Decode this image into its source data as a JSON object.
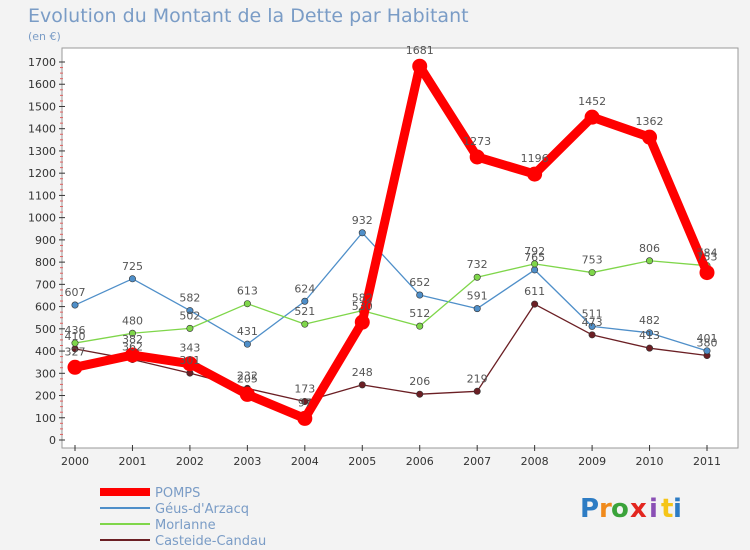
{
  "chart_data": {
    "type": "line",
    "title": "Evolution du Montant de la Dette par Habitant",
    "subtitle": "(en €)",
    "x": [
      "2000",
      "2001",
      "2002",
      "2003",
      "2004",
      "2005",
      "2006",
      "2007",
      "2008",
      "2009",
      "2010",
      "2011"
    ],
    "ylim": [
      0,
      1700
    ],
    "yticks": [
      0,
      100,
      200,
      300,
      400,
      500,
      600,
      700,
      800,
      900,
      1000,
      1100,
      1200,
      1300,
      1400,
      1500,
      1600,
      1700
    ],
    "grid": false,
    "legend_position": "bottom-left",
    "series": [
      {
        "name": "POMPS",
        "color": "#ff0000",
        "values": [
          327,
          382,
          343,
          205,
          97,
          530,
          1681,
          1273,
          1196,
          1452,
          1362,
          753
        ]
      },
      {
        "name": "Géus-d'Arzacq",
        "color": "#4f8fc9",
        "values": [
          607,
          725,
          582,
          431,
          624,
          932,
          652,
          591,
          765,
          511,
          482,
          401
        ]
      },
      {
        "name": "Morlanne",
        "color": "#7fd64a",
        "values": [
          436,
          480,
          502,
          613,
          521,
          582,
          512,
          732,
          792,
          753,
          806,
          784
        ]
      },
      {
        "name": "Casteide-Candau",
        "color": "#6b1f24",
        "values": [
          410,
          362,
          301,
          232,
          173,
          248,
          206,
          219,
          611,
          473,
          413,
          380
        ]
      }
    ]
  },
  "logo": {
    "letters": [
      "P",
      "r",
      "o",
      "x",
      "i",
      "t",
      "i"
    ]
  }
}
